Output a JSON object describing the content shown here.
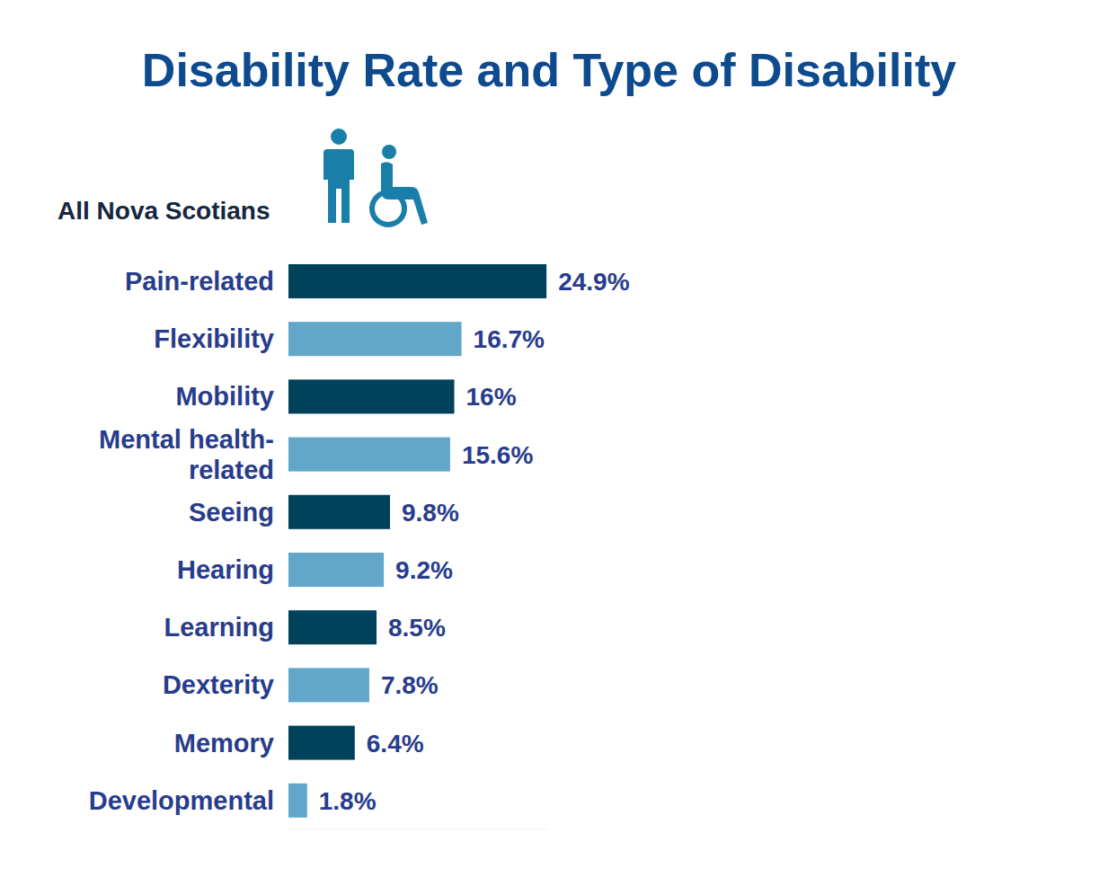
{
  "chart_data": {
    "type": "bar",
    "orientation": "horizontal",
    "title": "Disability Rate and Type of Disability",
    "subtitle": "All Nova Scotians",
    "categories": [
      "Pain-related",
      "Flexibility",
      "Mobility",
      "Mental health-related",
      "Seeing",
      "Hearing",
      "Learning",
      "Dexterity",
      "Memory",
      "Developmental"
    ],
    "values": [
      24.9,
      16.7,
      16,
      15.6,
      9.8,
      9.2,
      8.5,
      7.8,
      6.4,
      1.8
    ],
    "value_labels": [
      "24.9%",
      "16.7%",
      "16%",
      "15.6%",
      "9.8%",
      "9.2%",
      "8.5%",
      "7.8%",
      "6.4%",
      "1.8%"
    ],
    "colors": [
      "#00425c",
      "#62a6c9",
      "#00425c",
      "#62a6c9",
      "#00425c",
      "#62a6c9",
      "#00425c",
      "#62a6c9",
      "#00425c",
      "#62a6c9"
    ],
    "xlim": [
      0,
      25
    ],
    "xticks": [],
    "tick_labels": false,
    "data_labels": true,
    "grid": false
  }
}
